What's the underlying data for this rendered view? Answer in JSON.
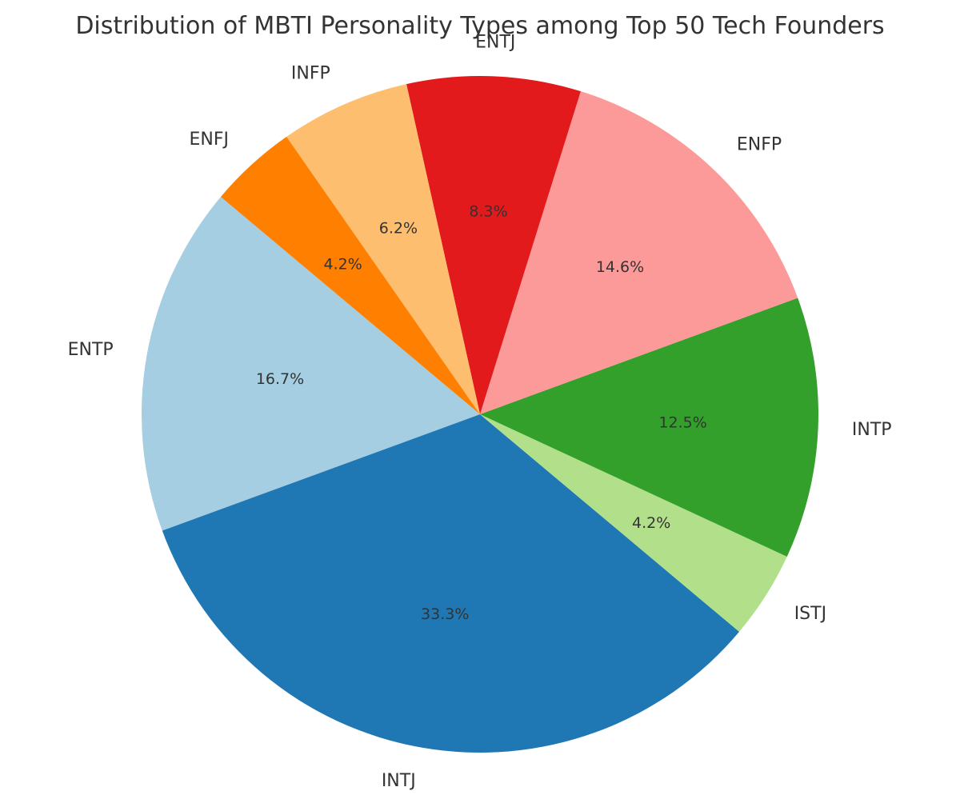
{
  "chart_data": {
    "type": "pie",
    "title": "Distribution of MBTI Personality Types among Top 50 Tech Founders",
    "start_angle_deg": 140,
    "direction": "counterclockwise",
    "slices": [
      {
        "label": "ENTP",
        "value": 16.7,
        "pct_label": "16.7%",
        "color": "#a6cee3"
      },
      {
        "label": "INTJ",
        "value": 33.3,
        "pct_label": "33.3%",
        "color": "#1f78b4"
      },
      {
        "label": "ISTJ",
        "value": 4.2,
        "pct_label": "4.2%",
        "color": "#b2df8a"
      },
      {
        "label": "INTP",
        "value": 12.5,
        "pct_label": "12.5%",
        "color": "#33a02c"
      },
      {
        "label": "ENFP",
        "value": 14.6,
        "pct_label": "14.6%",
        "color": "#fb9a99"
      },
      {
        "label": "ENTJ",
        "value": 8.3,
        "pct_label": "8.3%",
        "color": "#e31a1c"
      },
      {
        "label": "INFP",
        "value": 6.2,
        "pct_label": "6.2%",
        "color": "#fdbf6f"
      },
      {
        "label": "ENFJ",
        "value": 4.2,
        "pct_label": "4.2%",
        "color": "#ff7f00"
      }
    ]
  }
}
